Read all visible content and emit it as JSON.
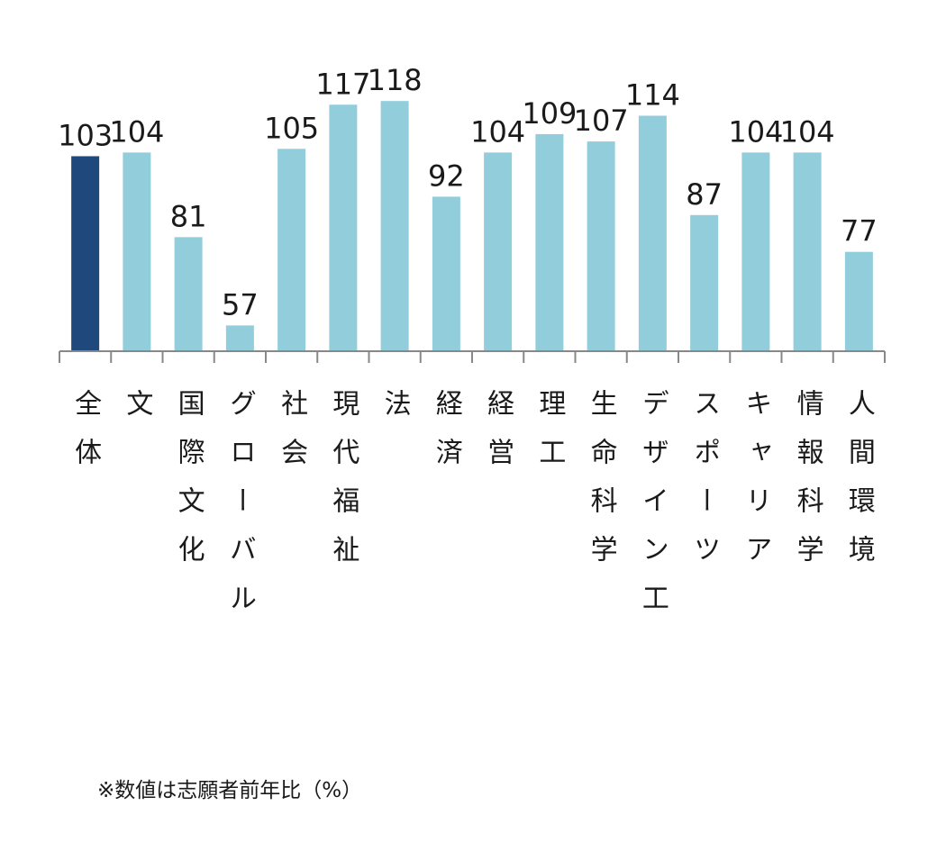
{
  "chart_data": {
    "type": "bar",
    "categories": [
      "全体",
      "文",
      "国際文化",
      "グローバル",
      "社会",
      "現代福祉",
      "法",
      "経済",
      "経営",
      "理工",
      "生命科学",
      "デザイン工",
      "スポーツ",
      "キャリア",
      "情報科学",
      "人間環境"
    ],
    "values": [
      103,
      104,
      81,
      57,
      105,
      117,
      118,
      92,
      104,
      109,
      107,
      114,
      87,
      104,
      104,
      77
    ],
    "colors": [
      "#1f497d",
      "#92cddc",
      "#92cddc",
      "#92cddc",
      "#92cddc",
      "#92cddc",
      "#92cddc",
      "#92cddc",
      "#92cddc",
      "#92cddc",
      "#92cddc",
      "#92cddc",
      "#92cddc",
      "#92cddc",
      "#92cddc",
      "#92cddc"
    ],
    "ylim": [
      50,
      120
    ],
    "footnote": "※数値は志願者前年比（%）"
  }
}
